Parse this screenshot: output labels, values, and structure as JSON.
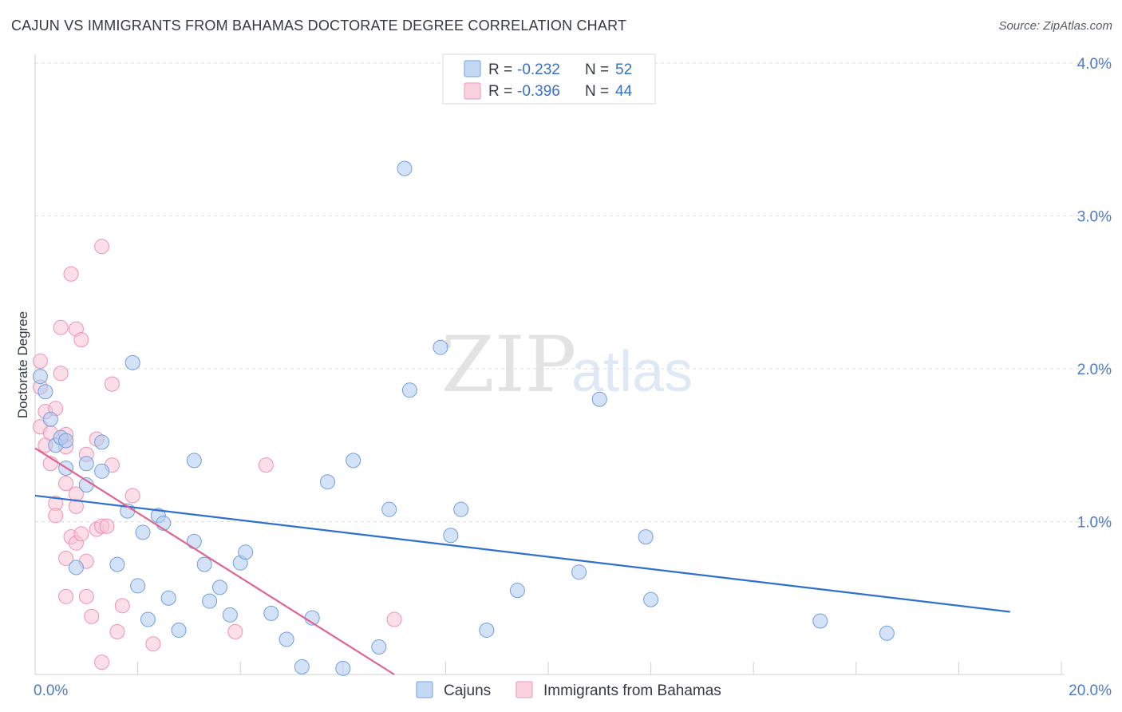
{
  "title": "CAJUN VS IMMIGRANTS FROM BAHAMAS DOCTORATE DEGREE CORRELATION CHART",
  "source": "Source: ZipAtlas.com",
  "watermark": {
    "zip": "ZIP",
    "atlas": "atlas"
  },
  "colors": {
    "blue_fill": "#aecbf0",
    "blue_stroke": "#6f9fe0",
    "blue_line": "#2f6fce",
    "pink_fill": "#f7c3d3",
    "pink_stroke": "#ec94b1",
    "pink_line": "#e0648e",
    "tick_text": "#4a7cc9",
    "grid": "#dddddd"
  },
  "legend": {
    "r_label": "R =",
    "n_label": "N =",
    "rows": [
      {
        "series": "Cajuns",
        "r": "-0.232",
        "n": "52"
      },
      {
        "series": "Immigrants from Bahamas",
        "r": "-0.396",
        "n": "44"
      }
    ]
  },
  "chart_data": {
    "type": "scatter",
    "title": "CAJUN VS IMMIGRANTS FROM BAHAMAS DOCTORATE DEGREE CORRELATION CHART",
    "xlabel": "",
    "ylabel": "Doctorate Degree",
    "xlim": [
      0,
      20
    ],
    "ylim": [
      0,
      4
    ],
    "x_tick_labels": [
      "0.0%",
      "20.0%"
    ],
    "y_ticks": [
      1,
      2,
      3,
      4
    ],
    "y_tick_labels": [
      "1.0%",
      "2.0%",
      "3.0%",
      "4.0%"
    ],
    "grid": true,
    "series": [
      {
        "name": "Cajuns",
        "r": -0.232,
        "n": 52,
        "trend": {
          "x": [
            0,
            19.0
          ],
          "y": [
            1.17,
            0.41
          ]
        },
        "points": [
          [
            0.1,
            1.95
          ],
          [
            0.2,
            1.85
          ],
          [
            0.3,
            1.67
          ],
          [
            0.4,
            1.5
          ],
          [
            0.5,
            1.55
          ],
          [
            0.6,
            1.53
          ],
          [
            0.6,
            1.35
          ],
          [
            1.0,
            1.38
          ],
          [
            1.0,
            1.24
          ],
          [
            1.3,
            1.52
          ],
          [
            1.3,
            1.33
          ],
          [
            1.8,
            1.07
          ],
          [
            1.9,
            2.04
          ],
          [
            0.8,
            0.7
          ],
          [
            1.6,
            0.72
          ],
          [
            2.0,
            0.58
          ],
          [
            2.1,
            0.93
          ],
          [
            2.4,
            1.04
          ],
          [
            2.5,
            0.99
          ],
          [
            2.2,
            0.36
          ],
          [
            2.6,
            0.5
          ],
          [
            2.8,
            0.29
          ],
          [
            3.1,
            0.87
          ],
          [
            3.1,
            1.4
          ],
          [
            3.3,
            0.72
          ],
          [
            3.4,
            0.48
          ],
          [
            3.6,
            0.57
          ],
          [
            3.8,
            0.39
          ],
          [
            4.0,
            0.73
          ],
          [
            4.1,
            0.8
          ],
          [
            4.6,
            0.4
          ],
          [
            4.9,
            0.23
          ],
          [
            5.2,
            0.05
          ],
          [
            5.4,
            0.37
          ],
          [
            5.7,
            1.26
          ],
          [
            6.0,
            0.04
          ],
          [
            6.2,
            1.4
          ],
          [
            6.7,
            0.18
          ],
          [
            6.9,
            1.08
          ],
          [
            7.2,
            3.31
          ],
          [
            7.3,
            1.86
          ],
          [
            7.9,
            2.14
          ],
          [
            8.1,
            0.91
          ],
          [
            8.3,
            1.08
          ],
          [
            8.8,
            0.29
          ],
          [
            9.4,
            0.55
          ],
          [
            10.6,
            0.67
          ],
          [
            11.0,
            1.8
          ],
          [
            11.9,
            0.9
          ],
          [
            12.0,
            0.49
          ],
          [
            15.3,
            0.35
          ],
          [
            16.6,
            0.27
          ]
        ]
      },
      {
        "name": "Immigrants from Bahamas",
        "r": -0.396,
        "n": 44,
        "trend": {
          "x": [
            0,
            7.0
          ],
          "y": [
            1.48,
            0.0
          ]
        },
        "points": [
          [
            0.1,
            2.05
          ],
          [
            0.1,
            1.88
          ],
          [
            0.1,
            1.62
          ],
          [
            0.2,
            1.72
          ],
          [
            0.2,
            1.5
          ],
          [
            0.3,
            1.38
          ],
          [
            0.3,
            1.58
          ],
          [
            0.4,
            1.74
          ],
          [
            0.4,
            1.12
          ],
          [
            0.4,
            1.04
          ],
          [
            0.5,
            1.97
          ],
          [
            0.6,
            1.49
          ],
          [
            0.5,
            2.27
          ],
          [
            0.6,
            1.57
          ],
          [
            0.6,
            1.25
          ],
          [
            0.8,
            1.1
          ],
          [
            0.7,
            0.9
          ],
          [
            0.8,
            0.86
          ],
          [
            0.6,
            0.76
          ],
          [
            0.6,
            0.51
          ],
          [
            0.7,
            2.62
          ],
          [
            0.8,
            2.26
          ],
          [
            0.9,
            2.19
          ],
          [
            0.8,
            1.18
          ],
          [
            0.9,
            0.92
          ],
          [
            1.0,
            1.44
          ],
          [
            1.0,
            0.74
          ],
          [
            1.0,
            0.51
          ],
          [
            1.1,
            0.38
          ],
          [
            1.2,
            1.54
          ],
          [
            1.2,
            0.95
          ],
          [
            1.3,
            2.8
          ],
          [
            1.3,
            0.97
          ],
          [
            1.4,
            0.97
          ],
          [
            1.5,
            1.37
          ],
          [
            1.5,
            1.9
          ],
          [
            1.6,
            0.28
          ],
          [
            1.7,
            0.45
          ],
          [
            1.9,
            1.17
          ],
          [
            2.3,
            0.2
          ],
          [
            1.3,
            0.08
          ],
          [
            3.9,
            0.28
          ],
          [
            4.5,
            1.37
          ],
          [
            7.0,
            0.36
          ]
        ]
      }
    ]
  }
}
